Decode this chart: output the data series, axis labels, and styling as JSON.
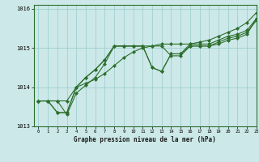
{
  "title": "Graphe pression niveau de la mer (hPa)",
  "background_color": "#cce8e8",
  "grid_color": "#99cccc",
  "line_color": "#2d6e2d",
  "marker_color": "#2d6e2d",
  "xlim": [
    -0.5,
    23
  ],
  "ylim": [
    1013.0,
    1016.1
  ],
  "yticks": [
    1013,
    1014,
    1015,
    1016
  ],
  "xticks": [
    0,
    1,
    2,
    3,
    4,
    5,
    6,
    7,
    8,
    9,
    10,
    11,
    12,
    13,
    14,
    15,
    16,
    17,
    18,
    19,
    20,
    21,
    22,
    23
  ],
  "series": [
    [
      1013.65,
      1013.65,
      1013.65,
      1013.65,
      1014.0,
      1014.1,
      1014.2,
      1014.35,
      1014.55,
      1014.75,
      1014.9,
      1015.0,
      1015.05,
      1015.1,
      1015.1,
      1015.1,
      1015.1,
      1015.15,
      1015.2,
      1015.3,
      1015.4,
      1015.5,
      1015.65,
      1015.9
    ],
    [
      1013.65,
      1013.65,
      1013.65,
      1013.3,
      1013.85,
      1014.05,
      1014.25,
      1014.6,
      1015.05,
      1015.05,
      1015.05,
      1015.05,
      1015.05,
      1015.05,
      1014.8,
      1014.8,
      1015.05,
      1015.05,
      1015.05,
      1015.1,
      1015.2,
      1015.25,
      1015.35,
      1015.75
    ],
    [
      1013.65,
      1013.65,
      1013.35,
      1013.35,
      1014.0,
      1014.25,
      1014.45,
      1014.7,
      1015.05,
      1015.05,
      1015.05,
      1015.05,
      1014.5,
      1014.4,
      1014.85,
      1014.85,
      1015.05,
      1015.05,
      1015.05,
      1015.15,
      1015.25,
      1015.3,
      1015.4,
      1015.7
    ],
    [
      1013.65,
      1013.65,
      1013.35,
      1013.35,
      1014.0,
      1014.25,
      1014.45,
      1014.7,
      1015.05,
      1015.05,
      1015.05,
      1015.05,
      1014.5,
      1014.4,
      1014.85,
      1014.85,
      1015.1,
      1015.1,
      1015.1,
      1015.2,
      1015.3,
      1015.35,
      1015.45,
      1015.75
    ]
  ]
}
